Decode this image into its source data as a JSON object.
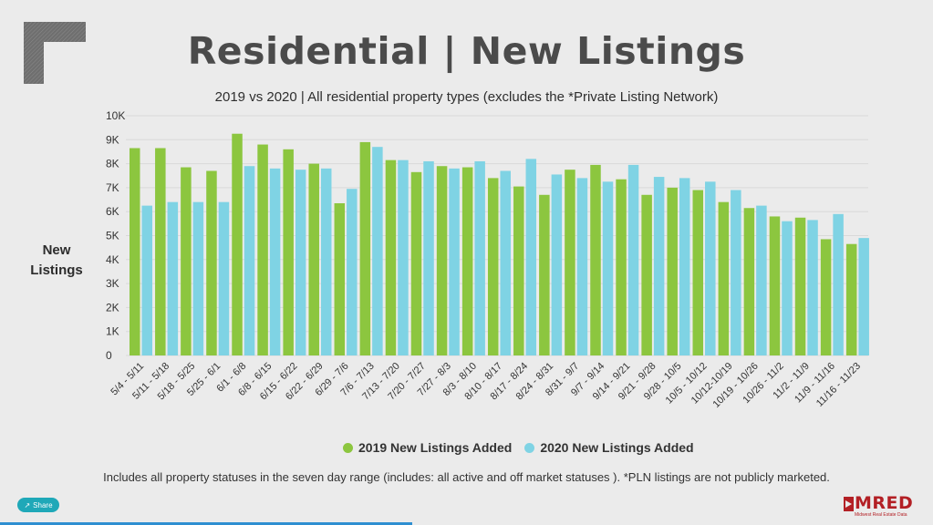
{
  "title": "Residential | New Listings",
  "subtitle": "2019 vs 2020 | All residential property types (excludes the *Private Listing Network)",
  "ylabel_line1": "New",
  "ylabel_line2": "Listings",
  "footnote": "Includes all property statuses in the seven day range (includes:  all active and off market statuses ).  *PLN listings are not publicly marketed.",
  "share_label": "Share",
  "brand": {
    "name": "MRED",
    "tagline": "Midwest Real Estate Data"
  },
  "colors": {
    "series_2019": "#8cc63f",
    "series_2020": "#7fd3e4",
    "grid": "#d9d9d9",
    "title": "#4b4b4b",
    "brand": "#b32025"
  },
  "chart_data": {
    "type": "bar",
    "ylim": [
      0,
      10000
    ],
    "yticks": [
      0,
      1000,
      2000,
      3000,
      4000,
      5000,
      6000,
      7000,
      8000,
      9000,
      10000
    ],
    "ytick_labels": [
      "0",
      "1K",
      "2K",
      "3K",
      "4K",
      "5K",
      "6K",
      "7K",
      "8K",
      "9K",
      "10K"
    ],
    "grid": true,
    "legend": "bottom",
    "categories": [
      "5/4 - 5/11",
      "5/11 - 5/18",
      "5/18 - 5/25",
      "5/25 - 6/1",
      "6/1 - 6/8",
      "6/8 - 6/15",
      "6/15 - 6/22",
      "6/22 - 6/29",
      "6/29 - 7/6",
      "7/6 - 7/13",
      "7/13 - 7/20",
      "7/20 - 7/27",
      "7/27 - 8/3",
      "8/3 - 8/10",
      "8/10 - 8/17",
      "8/17 - 8/24",
      "8/24 - 8/31",
      "8/31 - 9/7",
      "9/7 - 9/14",
      "9/14 - 9/21",
      "9/21 - 9/28",
      "9/28 - 10/5",
      "10/5 - 10/12",
      "10/12-10/19",
      "10/19 - 10/26",
      "10/26 - 11/2",
      "11/2 - 11/9",
      "11/9 - 11/16",
      "11/16 - 11/23"
    ],
    "series": [
      {
        "name": "2019 New Listings Added",
        "values": [
          8650,
          8650,
          7850,
          7700,
          9250,
          8800,
          8600,
          8000,
          6350,
          8900,
          8150,
          7650,
          7900,
          7850,
          7400,
          7050,
          6700,
          7750,
          7950,
          7350,
          6700,
          7000,
          6900,
          6400,
          6150,
          5800,
          5750,
          4850,
          4650
        ]
      },
      {
        "name": "2020 New Listings Added",
        "values": [
          6250,
          6400,
          6400,
          6400,
          7900,
          7800,
          7750,
          7800,
          6950,
          8700,
          8150,
          8100,
          7800,
          8100,
          7700,
          8200,
          7550,
          7400,
          7250,
          7950,
          7450,
          7400,
          7250,
          6900,
          6250,
          5600,
          5650,
          5900,
          4900
        ]
      }
    ]
  }
}
